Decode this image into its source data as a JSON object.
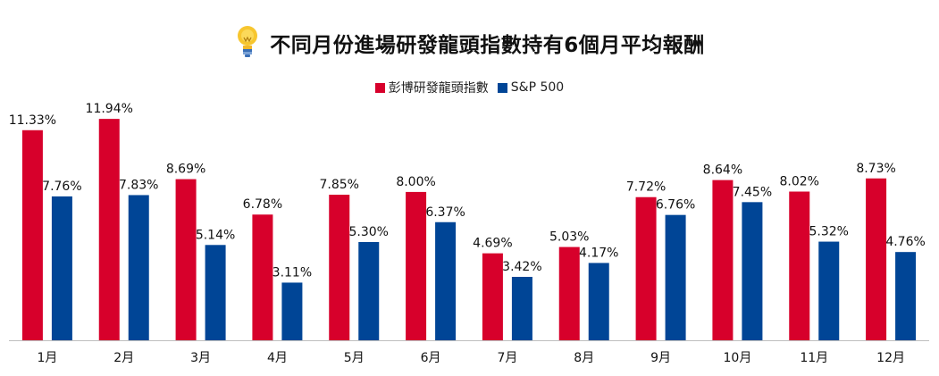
{
  "chart_data": {
    "type": "bar",
    "title": "不同月份進場研發龍頭指數持有6個月平均報酬",
    "categories": [
      "1月",
      "2月",
      "3月",
      "4月",
      "5月",
      "6月",
      "7月",
      "8月",
      "9月",
      "10月",
      "11月",
      "12月"
    ],
    "series": [
      {
        "name": "彭博研發龍頭指數",
        "color": "#d7002b",
        "values": [
          11.33,
          11.94,
          8.69,
          6.78,
          7.85,
          8.0,
          4.69,
          5.03,
          7.72,
          8.64,
          8.02,
          8.73
        ],
        "labels": [
          "11.33%",
          "11.94%",
          "8.69%",
          "6.78%",
          "7.85%",
          "8.00%",
          "4.69%",
          "5.03%",
          "7.72%",
          "8.64%",
          "8.02%",
          "8.73%"
        ]
      },
      {
        "name": "S&P 500",
        "color": "#004596",
        "values": [
          7.76,
          7.83,
          5.14,
          3.11,
          5.3,
          6.37,
          3.42,
          4.17,
          6.76,
          7.45,
          5.32,
          4.76
        ],
        "labels": [
          "7.76%",
          "7.83%",
          "5.14%",
          "3.11%",
          "5.30%",
          "6.37%",
          "3.42%",
          "4.17%",
          "6.76%",
          "7.45%",
          "5.32%",
          "4.76%"
        ]
      }
    ],
    "ylim": [
      0,
      13.15
    ],
    "legend": "top-center",
    "grid": false,
    "data_labels": true
  },
  "icons": {
    "title_icon": "lightbulb-icon"
  }
}
